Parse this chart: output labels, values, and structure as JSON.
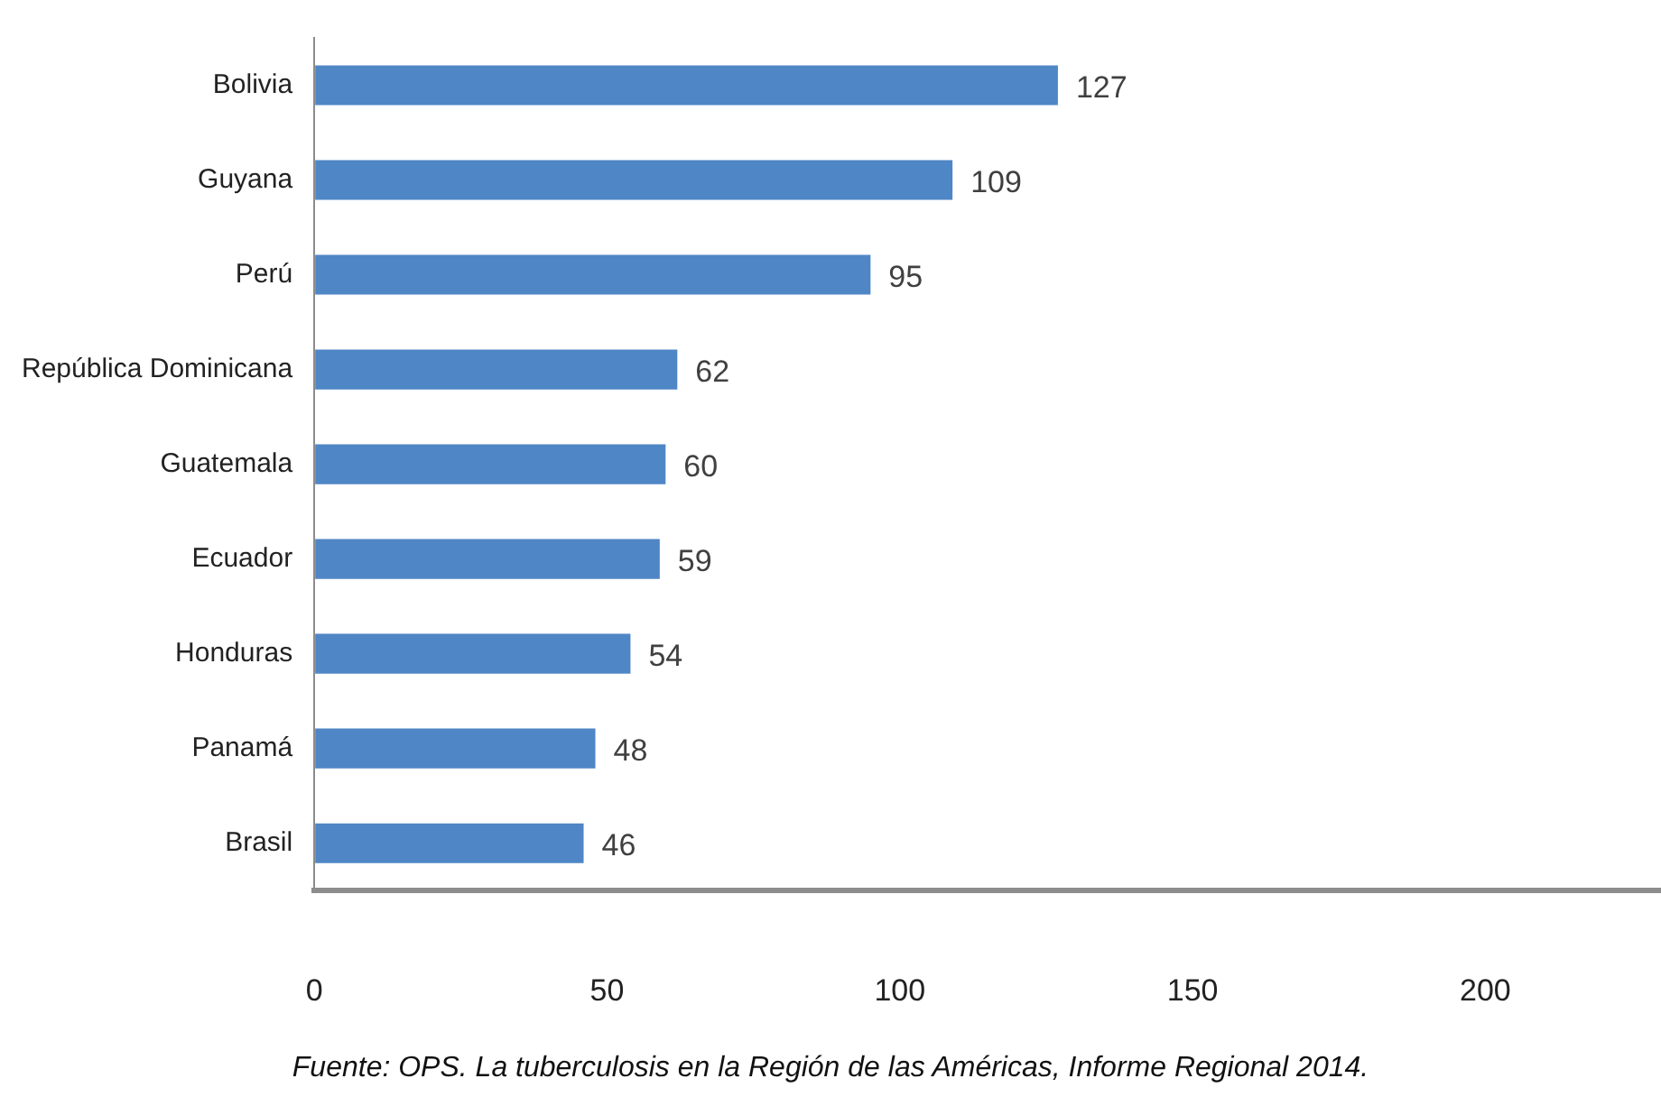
{
  "chart_data": {
    "type": "bar",
    "orientation": "horizontal",
    "categories": [
      "Bolivia",
      "Guyana",
      "Perú",
      "República Dominicana",
      "Guatemala",
      "Ecuador",
      "Honduras",
      "Panamá",
      "Brasil"
    ],
    "values": [
      127,
      109,
      95,
      62,
      60,
      59,
      54,
      48,
      46
    ],
    "color": "#4f86c6",
    "xlim": [
      0,
      230
    ],
    "xticks": [
      0,
      50,
      100,
      150,
      200
    ],
    "data_labels": true,
    "grid": false,
    "annotations": [
      "Fuente: OPS. La tuberculosis en la Región de las Américas, Informe Regional 2014."
    ]
  }
}
